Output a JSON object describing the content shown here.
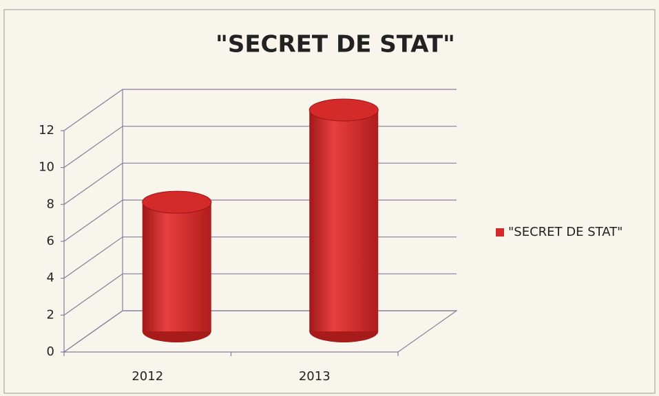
{
  "chart_data": {
    "type": "bar",
    "title": "\"SECRET DE STAT\"",
    "categories": [
      "2012",
      "2013"
    ],
    "series": [
      {
        "name": "\"SECRET DE STAT\"",
        "color": "#d42a2a",
        "values": [
          7,
          12
        ]
      }
    ],
    "ylim": [
      0,
      12
    ],
    "yticks": [
      0,
      2,
      4,
      6,
      8,
      10,
      12
    ],
    "grid": true,
    "legend": "right"
  }
}
